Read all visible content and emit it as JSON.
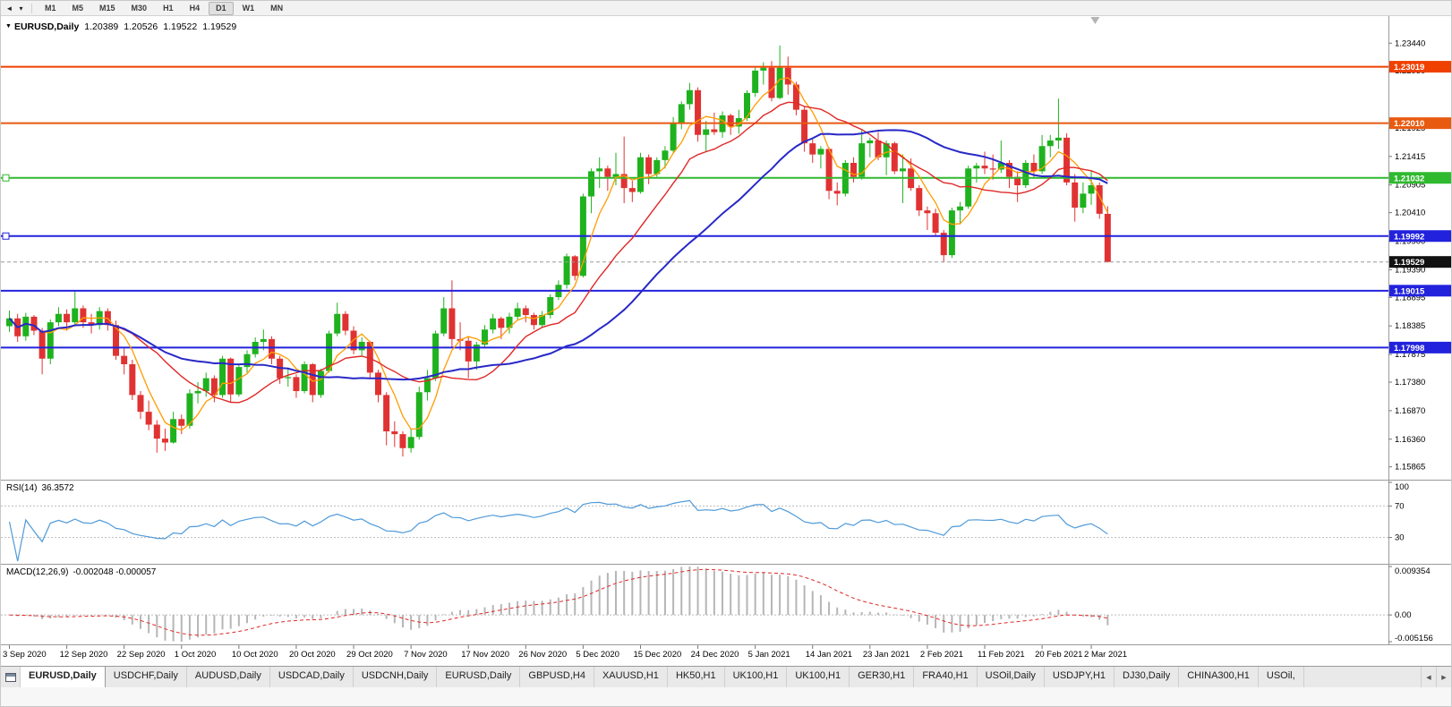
{
  "toolbar": {
    "timeframes": [
      "M1",
      "M5",
      "M15",
      "M30",
      "H1",
      "H4",
      "D1",
      "W1",
      "MN"
    ],
    "active_timeframe": "D1"
  },
  "chart": {
    "symbol_label": "EURUSD,Daily",
    "ohlc": {
      "open": "1.20389",
      "high": "1.20526",
      "low": "1.19522",
      "close": "1.19529"
    }
  },
  "chart_data": {
    "type": "candlestick",
    "symbol": "EURUSD",
    "timeframe": "Daily",
    "price_range": [
      1.157,
      1.2378
    ],
    "style": {
      "bull": "#1eb21e",
      "bear": "#e03232",
      "background": "#ffffff"
    },
    "price_axis_labels": [
      "1.23440",
      "1.22950",
      "1.21925",
      "1.21415",
      "1.20905",
      "1.20410",
      "1.19900",
      "1.19390",
      "1.18895",
      "1.18385",
      "1.17875",
      "1.17380",
      "1.16870",
      "1.16360",
      "1.15865"
    ],
    "hlines": [
      {
        "price": 1.23019,
        "label": "1.23019",
        "color": "#f04000",
        "handle": false
      },
      {
        "price": 1.2201,
        "label": "1.22010",
        "color": "#e85a10",
        "handle": false
      },
      {
        "price": 1.21032,
        "label": "1.21032",
        "color": "#2fb92f",
        "handle": true
      },
      {
        "price": 1.19992,
        "label": "1.19992",
        "color": "#2222dd",
        "handle": true
      },
      {
        "price": 1.19015,
        "label": "1.19015",
        "color": "#2222dd",
        "handle": false
      },
      {
        "price": 1.17998,
        "label": "1.17998",
        "color": "#2222dd",
        "handle": false
      }
    ],
    "current_price": {
      "value": 1.19529,
      "label": "1.19529",
      "color": "#111111"
    },
    "date_labels": [
      {
        "label": "3 Sep 2020",
        "index": 0
      },
      {
        "label": "12 Sep 2020",
        "index": 7
      },
      {
        "label": "22 Sep 2020",
        "index": 14
      },
      {
        "label": "1 Oct 2020",
        "index": 21
      },
      {
        "label": "10 Oct 2020",
        "index": 28
      },
      {
        "label": "20 Oct 2020",
        "index": 35
      },
      {
        "label": "29 Oct 2020",
        "index": 42
      },
      {
        "label": "7 Nov 2020",
        "index": 49
      },
      {
        "label": "17 Nov 2020",
        "index": 56
      },
      {
        "label": "26 Nov 2020",
        "index": 63
      },
      {
        "label": "5 Dec 2020",
        "index": 70
      },
      {
        "label": "15 Dec 2020",
        "index": 77
      },
      {
        "label": "24 Dec 2020",
        "index": 84
      },
      {
        "label": "5 Jan 2021",
        "index": 91
      },
      {
        "label": "14 Jan 2021",
        "index": 98
      },
      {
        "label": "23 Jan 2021",
        "index": 105
      },
      {
        "label": "2 Feb 2021",
        "index": 112
      },
      {
        "label": "11 Feb 2021",
        "index": 119
      },
      {
        "label": "20 Feb 2021",
        "index": 126
      },
      {
        "label": "2 Mar 2021",
        "index": 132
      }
    ],
    "moving_averages": [
      {
        "name": "ma-fast",
        "period": 5,
        "color": "#ff9c00",
        "width": 1.3
      },
      {
        "name": "ma-mid",
        "period": 14,
        "color": "#e02828",
        "width": 1.4
      },
      {
        "name": "ma-slow",
        "period": 30,
        "color": "#2828c8",
        "width": 2
      }
    ],
    "indicators": {
      "rsi": {
        "label": "RSI(14)",
        "value": "36.3572",
        "period": 14,
        "color": "#4f9ad9",
        "levels": [
          "100",
          "70",
          "30"
        ],
        "level_lines": [
          70,
          30
        ],
        "range": [
          0,
          100
        ]
      },
      "macd": {
        "label": "MACD(12,26,9)",
        "value": "-0.002048 -0.000057",
        "fast": 12,
        "slow": 26,
        "signal_period": 9,
        "range": [
          -0.005156,
          0.009354
        ],
        "axis_labels": [
          "0.009354",
          "0.00",
          "-0.005156"
        ],
        "bar_color": "#b6b6b6",
        "signal_color": "#e02828"
      }
    },
    "candles": [
      [
        1.1838,
        1.1866,
        1.1828,
        1.1852
      ],
      [
        1.1852,
        1.186,
        1.181,
        1.182
      ],
      [
        1.182,
        1.1862,
        1.1812,
        1.1855
      ],
      [
        1.1855,
        1.1858,
        1.1822,
        1.183
      ],
      [
        1.183,
        1.1835,
        1.1752,
        1.178
      ],
      [
        1.178,
        1.185,
        1.177,
        1.1845
      ],
      [
        1.1845,
        1.1872,
        1.1838,
        1.186
      ],
      [
        1.186,
        1.1868,
        1.183,
        1.1845
      ],
      [
        1.1845,
        1.1901,
        1.184,
        1.187
      ],
      [
        1.187,
        1.1875,
        1.1835,
        1.1845
      ],
      [
        1.1845,
        1.186,
        1.1825,
        1.184
      ],
      [
        1.184,
        1.1872,
        1.1832,
        1.1865
      ],
      [
        1.1865,
        1.187,
        1.183,
        1.184
      ],
      [
        1.184,
        1.1848,
        1.1778,
        1.1785
      ],
      [
        1.1785,
        1.1798,
        1.1752,
        1.177
      ],
      [
        1.177,
        1.1778,
        1.1706,
        1.1715
      ],
      [
        1.1715,
        1.1722,
        1.1672,
        1.1685
      ],
      [
        1.1685,
        1.1705,
        1.1652,
        1.1662
      ],
      [
        1.1662,
        1.167,
        1.1612,
        1.1637
      ],
      [
        1.1637,
        1.1655,
        1.1615,
        1.163
      ],
      [
        1.163,
        1.1685,
        1.1628,
        1.1672
      ],
      [
        1.1672,
        1.168,
        1.1645,
        1.166
      ],
      [
        1.166,
        1.1725,
        1.1655,
        1.1718
      ],
      [
        1.1718,
        1.1738,
        1.17,
        1.1722
      ],
      [
        1.1722,
        1.1755,
        1.1712,
        1.1745
      ],
      [
        1.1745,
        1.175,
        1.1702,
        1.1715
      ],
      [
        1.1715,
        1.1785,
        1.171,
        1.178
      ],
      [
        1.178,
        1.1782,
        1.1702,
        1.1716
      ],
      [
        1.1716,
        1.177,
        1.1712,
        1.1765
      ],
      [
        1.1765,
        1.1795,
        1.1755,
        1.1788
      ],
      [
        1.1788,
        1.1818,
        1.1782,
        1.181
      ],
      [
        1.181,
        1.1832,
        1.1795,
        1.1815
      ],
      [
        1.1815,
        1.182,
        1.177,
        1.178
      ],
      [
        1.178,
        1.1785,
        1.1735,
        1.1745
      ],
      [
        1.1745,
        1.1762,
        1.173,
        1.1747
      ],
      [
        1.1747,
        1.1752,
        1.171,
        1.1722
      ],
      [
        1.1722,
        1.1775,
        1.1718,
        1.177
      ],
      [
        1.177,
        1.1772,
        1.1702,
        1.1715
      ],
      [
        1.1715,
        1.1762,
        1.171,
        1.1758
      ],
      [
        1.1758,
        1.183,
        1.1755,
        1.1825
      ],
      [
        1.1825,
        1.188,
        1.182,
        1.186
      ],
      [
        1.186,
        1.1865,
        1.1822,
        1.183
      ],
      [
        1.183,
        1.1838,
        1.1788,
        1.1795
      ],
      [
        1.1795,
        1.1818,
        1.1785,
        1.181
      ],
      [
        1.181,
        1.1812,
        1.1745,
        1.1755
      ],
      [
        1.1755,
        1.176,
        1.1702,
        1.1715
      ],
      [
        1.1715,
        1.172,
        1.1625,
        1.165
      ],
      [
        1.165,
        1.1668,
        1.1622,
        1.1645
      ],
      [
        1.1645,
        1.165,
        1.1605,
        1.162
      ],
      [
        1.162,
        1.1655,
        1.1612,
        1.164
      ],
      [
        1.164,
        1.173,
        1.1635,
        1.172
      ],
      [
        1.172,
        1.176,
        1.1705,
        1.1745
      ],
      [
        1.1745,
        1.183,
        1.174,
        1.1825
      ],
      [
        1.1825,
        1.189,
        1.182,
        1.187
      ],
      [
        1.187,
        1.192,
        1.18,
        1.1815
      ],
      [
        1.1815,
        1.1845,
        1.1795,
        1.1812
      ],
      [
        1.1812,
        1.182,
        1.1745,
        1.1775
      ],
      [
        1.1775,
        1.181,
        1.176,
        1.1805
      ],
      [
        1.1805,
        1.184,
        1.18,
        1.1832
      ],
      [
        1.1832,
        1.186,
        1.1825,
        1.1852
      ],
      [
        1.1852,
        1.1855,
        1.1815,
        1.1835
      ],
      [
        1.1835,
        1.1862,
        1.1825,
        1.1855
      ],
      [
        1.1855,
        1.188,
        1.185,
        1.187
      ],
      [
        1.187,
        1.1875,
        1.1845,
        1.1858
      ],
      [
        1.1858,
        1.1862,
        1.1832,
        1.184
      ],
      [
        1.184,
        1.1865,
        1.1835,
        1.1858
      ],
      [
        1.1858,
        1.1895,
        1.1852,
        1.189
      ],
      [
        1.189,
        1.192,
        1.1885,
        1.1912
      ],
      [
        1.1912,
        1.1968,
        1.1905,
        1.1963
      ],
      [
        1.1963,
        1.1965,
        1.192,
        1.1928
      ],
      [
        1.1928,
        1.2075,
        1.1925,
        1.207
      ],
      [
        1.207,
        1.212,
        1.204,
        1.2115
      ],
      [
        1.2115,
        1.214,
        1.2085,
        1.212
      ],
      [
        1.212,
        1.2125,
        1.208,
        1.2105
      ],
      [
        1.2105,
        1.2148,
        1.209,
        1.211
      ],
      [
        1.211,
        1.2177,
        1.2058,
        1.2085
      ],
      [
        1.2085,
        1.2098,
        1.206,
        1.2078
      ],
      [
        1.2078,
        1.2148,
        1.2075,
        1.214
      ],
      [
        1.214,
        1.2145,
        1.2092,
        1.211
      ],
      [
        1.211,
        1.214,
        1.2105,
        1.2135
      ],
      [
        1.2135,
        1.216,
        1.212,
        1.2152
      ],
      [
        1.2152,
        1.2212,
        1.2148,
        1.22
      ],
      [
        1.22,
        1.224,
        1.219,
        1.2235
      ],
      [
        1.2235,
        1.2273,
        1.2225,
        1.226
      ],
      [
        1.226,
        1.2265,
        1.2168,
        1.218
      ],
      [
        1.218,
        1.2205,
        1.215,
        1.219
      ],
      [
        1.219,
        1.222,
        1.218,
        1.2185
      ],
      [
        1.2185,
        1.2222,
        1.2175,
        1.2215
      ],
      [
        1.2215,
        1.2218,
        1.218,
        1.2195
      ],
      [
        1.2195,
        1.2225,
        1.2182,
        1.221
      ],
      [
        1.221,
        1.226,
        1.2205,
        1.2255
      ],
      [
        1.2255,
        1.23,
        1.2248,
        1.2295
      ],
      [
        1.2295,
        1.231,
        1.227,
        1.23
      ],
      [
        1.23,
        1.2312,
        1.224,
        1.2246
      ],
      [
        1.2246,
        1.234,
        1.2244,
        1.23
      ],
      [
        1.23,
        1.232,
        1.2252,
        1.227
      ],
      [
        1.227,
        1.2275,
        1.2215,
        1.2225
      ],
      [
        1.2225,
        1.223,
        1.215,
        1.2165
      ],
      [
        1.2165,
        1.2175,
        1.213,
        1.2145
      ],
      [
        1.2145,
        1.216,
        1.212,
        1.2155
      ],
      [
        1.2155,
        1.2158,
        1.2065,
        1.208
      ],
      [
        1.208,
        1.2095,
        1.2054,
        1.2075
      ],
      [
        1.2075,
        1.2135,
        1.207,
        1.213
      ],
      [
        1.213,
        1.214,
        1.2095,
        1.2105
      ],
      [
        1.2105,
        1.219,
        1.21,
        1.2165
      ],
      [
        1.2165,
        1.2175,
        1.214,
        1.217
      ],
      [
        1.217,
        1.2185,
        1.2135,
        1.214
      ],
      [
        1.214,
        1.217,
        1.2108,
        1.2165
      ],
      [
        1.2165,
        1.2168,
        1.211,
        1.2115
      ],
      [
        1.2115,
        1.2145,
        1.2058,
        1.212
      ],
      [
        1.212,
        1.2138,
        1.208,
        1.2085
      ],
      [
        1.2085,
        1.209,
        1.2035,
        1.2045
      ],
      [
        1.2045,
        1.2052,
        1.201,
        1.204
      ],
      [
        1.204,
        1.2048,
        1.2,
        1.2005
      ],
      [
        1.2005,
        1.201,
        1.1952,
        1.1965
      ],
      [
        1.1965,
        1.205,
        1.196,
        1.2045
      ],
      [
        1.2045,
        1.206,
        1.202,
        1.2052
      ],
      [
        1.2052,
        1.2125,
        1.2048,
        1.212
      ],
      [
        1.212,
        1.213,
        1.2095,
        1.2125
      ],
      [
        1.2125,
        1.215,
        1.211,
        1.212
      ],
      [
        1.212,
        1.2145,
        1.21,
        1.2118
      ],
      [
        1.2118,
        1.217,
        1.2112,
        1.213
      ],
      [
        1.213,
        1.2135,
        1.2085,
        1.2105
      ],
      [
        1.2105,
        1.2115,
        1.206,
        1.209
      ],
      [
        1.209,
        1.2135,
        1.2085,
        1.213
      ],
      [
        1.213,
        1.2145,
        1.2105,
        1.2115
      ],
      [
        1.2115,
        1.218,
        1.211,
        1.216
      ],
      [
        1.216,
        1.218,
        1.214,
        1.217
      ],
      [
        1.217,
        1.2245,
        1.2155,
        1.2175
      ],
      [
        1.2175,
        1.2183,
        1.209,
        1.2095
      ],
      [
        1.2095,
        1.211,
        1.2025,
        1.205
      ],
      [
        1.205,
        1.2095,
        1.204,
        1.2075
      ],
      [
        1.2075,
        1.2115,
        1.2055,
        1.209
      ],
      [
        1.209,
        1.2095,
        1.203,
        1.2039
      ],
      [
        1.20389,
        1.20526,
        1.19522,
        1.19529
      ]
    ]
  },
  "tabs": {
    "active_index": 0,
    "items": [
      "EURUSD,Daily",
      "USDCHF,Daily",
      "AUDUSD,Daily",
      "USDCAD,Daily",
      "USDCNH,Daily",
      "EURUSD,Daily",
      "GBPUSD,H4",
      "XAUUSD,H1",
      "HK50,H1",
      "UK100,H1",
      "UK100,H1",
      "GER30,H1",
      "FRA40,H1",
      "USOil,Daily",
      "USDJPY,H1",
      "DJ30,Daily",
      "CHINA300,H1",
      "USOil,"
    ],
    "scroll_left": "◀",
    "scroll_right": "▶"
  }
}
